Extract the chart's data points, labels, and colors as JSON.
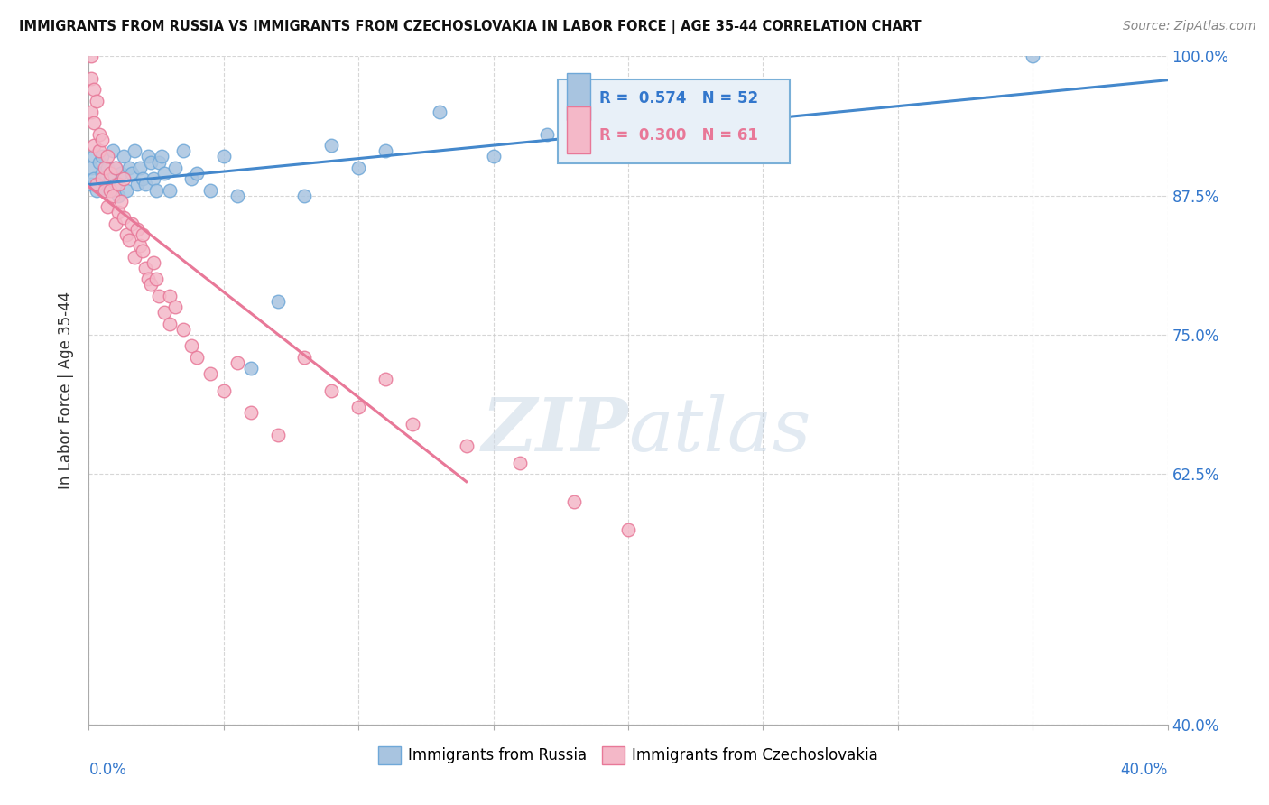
{
  "title": "IMMIGRANTS FROM RUSSIA VS IMMIGRANTS FROM CZECHOSLOVAKIA IN LABOR FORCE | AGE 35-44 CORRELATION CHART",
  "source": "Source: ZipAtlas.com",
  "xmin": 0.0,
  "xmax": 40.0,
  "ymin": 40.0,
  "ymax": 100.0,
  "ylabel_ticks": [
    40.0,
    62.5,
    75.0,
    87.5,
    100.0
  ],
  "ylabel_tick_labels": [
    "40.0%",
    "62.5%",
    "75.0%",
    "87.5%",
    "100.0%"
  ],
  "russia_R": 0.574,
  "russia_N": 52,
  "czech_R": 0.3,
  "czech_N": 61,
  "russia_color": "#a8c4e0",
  "russia_edge": "#6fa8d8",
  "czech_color": "#f4b8c8",
  "czech_edge": "#e87898",
  "russia_line_color": "#4488cc",
  "czech_line_color": "#e87898",
  "legend_box_color": "#e8f0f8",
  "legend_border_color": "#7ab0d8",
  "watermark_color": "#c8d8e8",
  "background_color": "#ffffff",
  "russia_x": [
    0.1,
    0.1,
    0.2,
    0.2,
    0.3,
    0.4,
    0.5,
    0.5,
    0.6,
    0.7,
    0.8,
    0.9,
    1.0,
    1.0,
    1.1,
    1.2,
    1.3,
    1.4,
    1.5,
    1.6,
    1.7,
    1.8,
    1.9,
    2.0,
    2.1,
    2.2,
    2.3,
    2.4,
    2.5,
    2.6,
    2.7,
    2.8,
    3.0,
    3.2,
    3.5,
    3.8,
    4.0,
    4.5,
    5.0,
    5.5,
    6.0,
    7.0,
    8.0,
    9.0,
    10.0,
    11.0,
    13.0,
    15.0,
    17.0,
    20.0,
    25.0,
    35.0
  ],
  "russia_y": [
    88.5,
    90.0,
    89.0,
    91.0,
    88.0,
    90.5,
    91.0,
    89.5,
    88.0,
    90.0,
    89.0,
    91.5,
    88.5,
    90.0,
    87.5,
    89.5,
    91.0,
    88.0,
    90.0,
    89.5,
    91.5,
    88.5,
    90.0,
    89.0,
    88.5,
    91.0,
    90.5,
    89.0,
    88.0,
    90.5,
    91.0,
    89.5,
    88.0,
    90.0,
    91.5,
    89.0,
    89.5,
    88.0,
    91.0,
    87.5,
    72.0,
    78.0,
    87.5,
    92.0,
    90.0,
    91.5,
    95.0,
    91.0,
    93.0,
    92.5,
    96.0,
    100.0
  ],
  "czech_x": [
    0.1,
    0.1,
    0.1,
    0.2,
    0.2,
    0.2,
    0.3,
    0.3,
    0.4,
    0.4,
    0.5,
    0.5,
    0.6,
    0.6,
    0.7,
    0.7,
    0.8,
    0.8,
    0.9,
    1.0,
    1.0,
    1.1,
    1.1,
    1.2,
    1.3,
    1.3,
    1.4,
    1.5,
    1.6,
    1.7,
    1.8,
    1.9,
    2.0,
    2.0,
    2.1,
    2.2,
    2.3,
    2.4,
    2.5,
    2.6,
    2.8,
    3.0,
    3.0,
    3.2,
    3.5,
    3.8,
    4.0,
    4.5,
    5.0,
    5.5,
    6.0,
    7.0,
    8.0,
    9.0,
    10.0,
    11.0,
    12.0,
    14.0,
    16.0,
    18.0,
    20.0
  ],
  "czech_y": [
    100.0,
    98.0,
    95.0,
    92.0,
    97.0,
    94.0,
    88.5,
    96.0,
    91.5,
    93.0,
    89.0,
    92.5,
    90.0,
    88.0,
    91.0,
    86.5,
    89.5,
    88.0,
    87.5,
    90.0,
    85.0,
    88.5,
    86.0,
    87.0,
    85.5,
    89.0,
    84.0,
    83.5,
    85.0,
    82.0,
    84.5,
    83.0,
    82.5,
    84.0,
    81.0,
    80.0,
    79.5,
    81.5,
    80.0,
    78.5,
    77.0,
    76.0,
    78.5,
    77.5,
    75.5,
    74.0,
    73.0,
    71.5,
    70.0,
    72.5,
    68.0,
    66.0,
    73.0,
    70.0,
    68.5,
    71.0,
    67.0,
    65.0,
    63.5,
    60.0,
    57.5
  ]
}
